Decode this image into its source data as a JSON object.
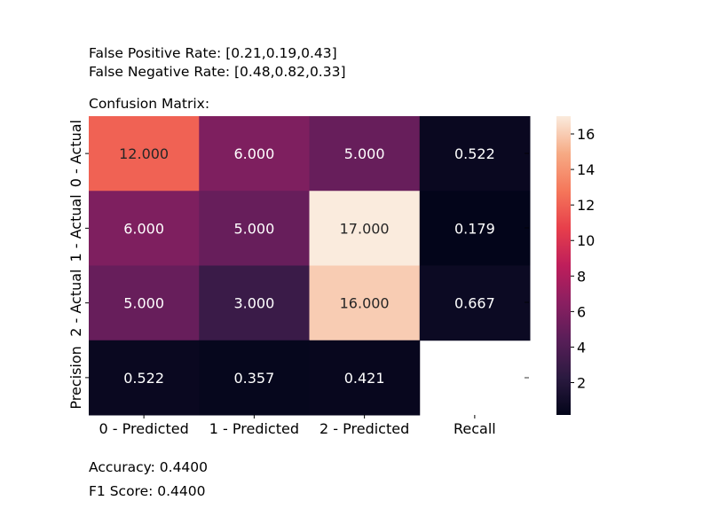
{
  "header": {
    "false_positive_rate": "False Positive Rate: [0.21,0.19,0.43]",
    "false_negative_rate": "False Negative Rate: [0.48,0.82,0.33]",
    "matrix_label": "Confusion Matrix:"
  },
  "footer": {
    "accuracy": "Accuracy: 0.4400",
    "f1_score": "F1 Score: 0.4400"
  },
  "chart_data": {
    "type": "heatmap",
    "title": "",
    "xlabel": "",
    "ylabel": "",
    "x_categories": [
      "0 - Predicted",
      "1 - Predicted",
      "2 - Predicted",
      "Recall"
    ],
    "y_categories": [
      "0 - Actual",
      "1 - Actual",
      "2 - Actual",
      "Precision"
    ],
    "matrix": [
      [
        12,
        6,
        5,
        0.522
      ],
      [
        6,
        5,
        17,
        0.179
      ],
      [
        5,
        3,
        16,
        0.667
      ],
      [
        0.522,
        0.357,
        0.421,
        null
      ]
    ],
    "cell_labels": [
      [
        "12.000",
        "6.000",
        "5.000",
        "0.522"
      ],
      [
        "6.000",
        "5.000",
        "17.000",
        "0.179"
      ],
      [
        "5.000",
        "3.000",
        "16.000",
        "0.667"
      ],
      [
        "0.522",
        "0.357",
        "0.421",
        ""
      ]
    ],
    "colorbar": {
      "min": 0.179,
      "max": 17,
      "ticks": [
        2,
        4,
        6,
        8,
        10,
        12,
        14,
        16
      ],
      "colormap": "rocket"
    }
  }
}
